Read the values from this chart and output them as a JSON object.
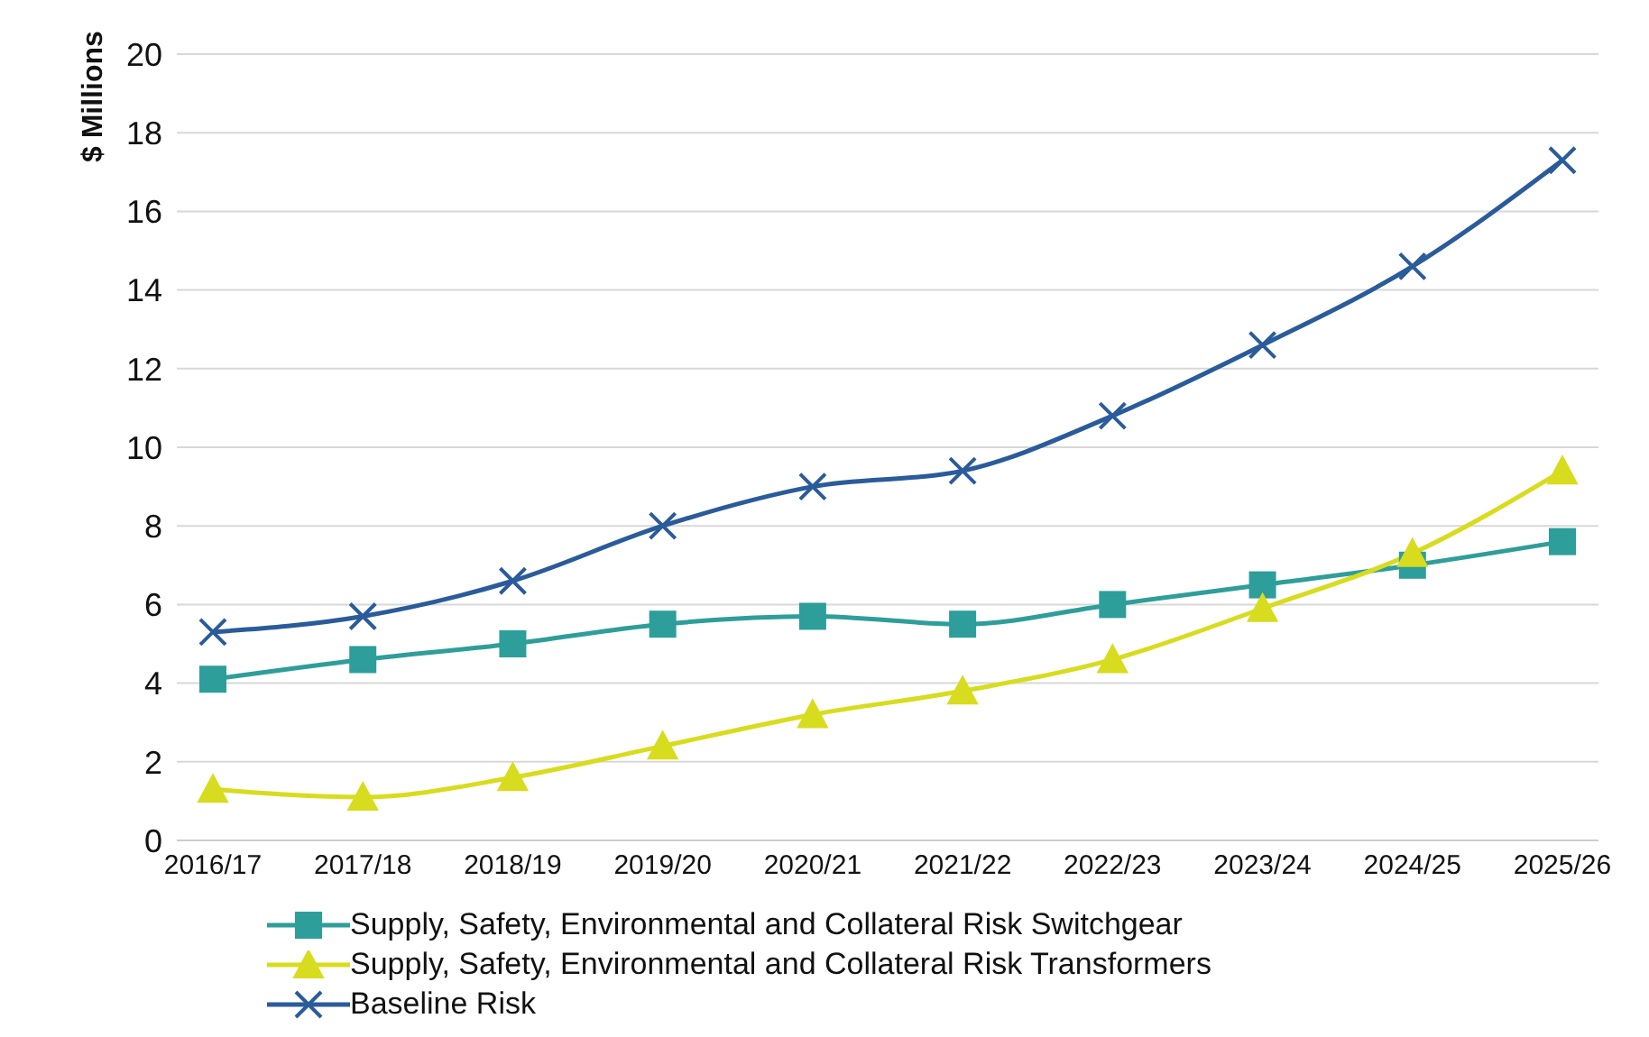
{
  "chart_data": {
    "type": "line",
    "ylabel": "$ Millions",
    "categories": [
      "2016/17",
      "2017/18",
      "2018/19",
      "2019/20",
      "2020/21",
      "2021/22",
      "2022/23",
      "2023/24",
      "2024/25",
      "2025/26"
    ],
    "series": [
      {
        "name": "Supply, Safety, Environmental and Collateral Risk Switchgear",
        "color": "#2e9e9a",
        "marker": "square",
        "values": [
          4.1,
          4.6,
          5.0,
          5.5,
          5.7,
          5.5,
          6.0,
          6.5,
          7.0,
          7.6
        ]
      },
      {
        "name": "Supply, Safety, Environmental and Collateral Risk Transformers",
        "color": "#d8dc1e",
        "marker": "triangle",
        "values": [
          1.3,
          1.1,
          1.6,
          2.4,
          3.2,
          3.8,
          4.6,
          5.9,
          7.3,
          9.4
        ]
      },
      {
        "name": "Baseline Risk",
        "color": "#2a5b9a",
        "marker": "cross",
        "values": [
          5.3,
          5.7,
          6.6,
          8.0,
          9.0,
          9.4,
          10.8,
          12.6,
          14.6,
          17.3
        ]
      }
    ],
    "ylim": [
      0,
      20
    ],
    "yticks": [
      0,
      2,
      4,
      6,
      8,
      10,
      12,
      14,
      16,
      18,
      20
    ],
    "grid": "y",
    "legend": "bottom left"
  }
}
